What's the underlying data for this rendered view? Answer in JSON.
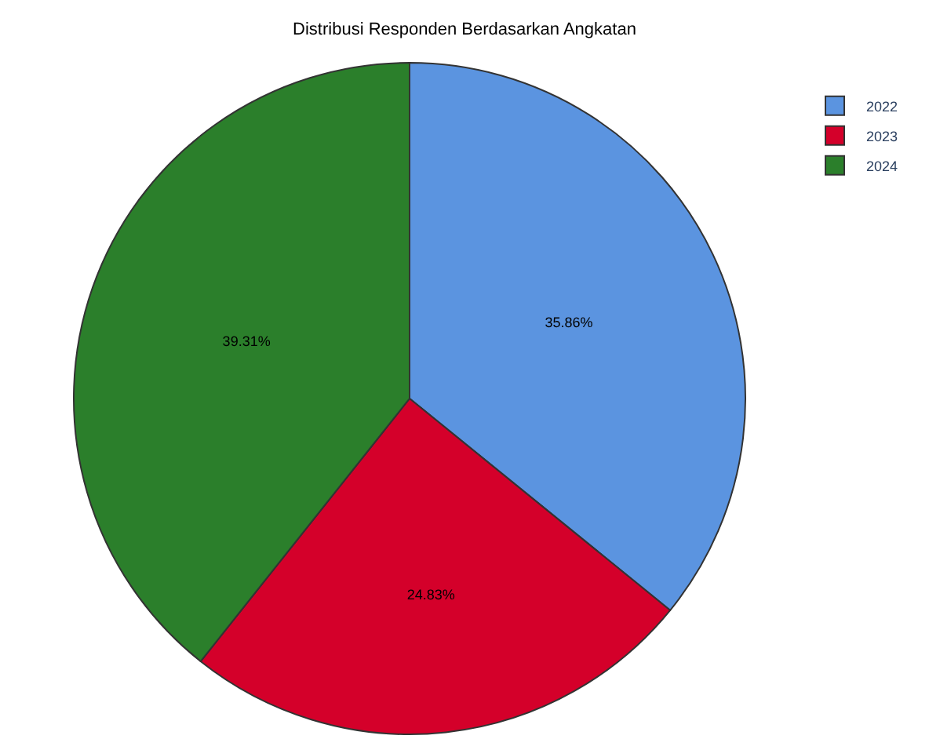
{
  "chart_data": {
    "type": "pie",
    "title": "Distribusi Responden Berdasarkan Angkatan",
    "categories": [
      "2022",
      "2023",
      "2024"
    ],
    "values": [
      35.86,
      24.83,
      39.31
    ],
    "colors": [
      "#5b94e0",
      "#d4002a",
      "#2b7f2b"
    ],
    "value_labels": [
      "35.86%",
      "24.83%",
      "39.31%"
    ],
    "legend": "top right"
  }
}
